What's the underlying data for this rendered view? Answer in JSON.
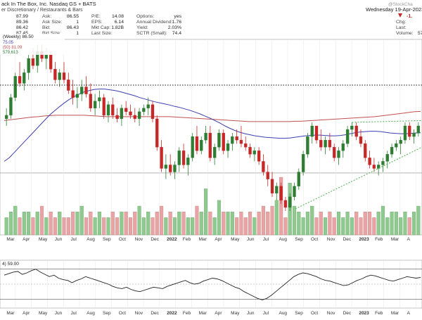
{
  "header": {
    "title": "ack In The Box, Inc.  Nasdaq GS + BATS",
    "subtitle": "er Discretionary / Restaurants & Bars",
    "quote_col1": [
      "87.99",
      "89.36",
      "86.42",
      "87.45"
    ],
    "quote_col2": [
      {
        "label": "Ask:",
        "value": "86.55"
      },
      {
        "label": "Ask Size:",
        "value": "1"
      },
      {
        "label": "Bid:",
        "value": "86.43"
      },
      {
        "label": "Bid Size:",
        "value": "1"
      }
    ],
    "quote_col3": [
      {
        "label": "P/E:",
        "value": "14.08"
      },
      {
        "label": "EPS:",
        "value": "6.14"
      },
      {
        "label": "Mkt Cap:",
        "value": "1.82B"
      },
      {
        "label": "Last Size:",
        "value": ""
      }
    ],
    "quote_col4": [
      {
        "label": "Options:",
        "value": "yes"
      },
      {
        "label": "Annual Dividend:",
        "value": "1.76"
      },
      {
        "label": "Yield:",
        "value": "2.03%"
      },
      {
        "label": "SCTR (Small):",
        "value": "74.4"
      }
    ],
    "date": "Wednesday  19-Apr-2023  2:",
    "brand": "@StockCha",
    "right_labels": [
      "Chg:",
      "Last:",
      "Volume:"
    ],
    "chg_value": "-1.",
    "volume_value": "579"
  },
  "legend": {
    "price_line": "(Weekly) 86.50",
    "ma_fast_value": "75.05",
    "ma_slow_line": "(50) 81.09",
    "vol_line": "579,613",
    "rsi_line": "4) 59.00"
  },
  "colors": {
    "up": "#2e7d32",
    "down": "#c62828",
    "vol_up": "#8fc98f",
    "vol_down": "#e8a4a4",
    "ma_fast": "#3d3fb0",
    "ma_slow": "#c05050",
    "trend": "#4caf50",
    "rsi": "#222222"
  },
  "chart_data": {
    "type": "candlestick",
    "price_range": [
      53,
      101
    ],
    "months": [
      "Mar",
      "Apr",
      "May",
      "Jun",
      "Jul",
      "Aug",
      "Sep",
      "Oct",
      "Nov",
      "Dec",
      "2022",
      "Feb",
      "Mar",
      "Apr",
      "May",
      "Jun",
      "Jul",
      "Aug",
      "Sep",
      "Oct",
      "Nov",
      "Dec",
      "2023",
      "Feb",
      "Mar",
      "A"
    ],
    "candles": [
      {
        "o": 79,
        "h": 82,
        "l": 77,
        "c": 80
      },
      {
        "o": 80,
        "h": 86,
        "l": 79,
        "c": 85
      },
      {
        "o": 85,
        "h": 92,
        "l": 84,
        "c": 91
      },
      {
        "o": 91,
        "h": 95,
        "l": 88,
        "c": 89
      },
      {
        "o": 89,
        "h": 93,
        "l": 87,
        "c": 92
      },
      {
        "o": 92,
        "h": 97,
        "l": 90,
        "c": 96
      },
      {
        "o": 96,
        "h": 99,
        "l": 93,
        "c": 94
      },
      {
        "o": 94,
        "h": 100,
        "l": 92,
        "c": 98
      },
      {
        "o": 98,
        "h": 100,
        "l": 95,
        "c": 96
      },
      {
        "o": 96,
        "h": 99,
        "l": 93,
        "c": 97
      },
      {
        "o": 97,
        "h": 98,
        "l": 92,
        "c": 93
      },
      {
        "o": 93,
        "h": 95,
        "l": 89,
        "c": 90
      },
      {
        "o": 90,
        "h": 93,
        "l": 88,
        "c": 92
      },
      {
        "o": 92,
        "h": 95,
        "l": 89,
        "c": 90
      },
      {
        "o": 90,
        "h": 92,
        "l": 86,
        "c": 87
      },
      {
        "o": 87,
        "h": 90,
        "l": 83,
        "c": 85
      },
      {
        "o": 85,
        "h": 88,
        "l": 82,
        "c": 86
      },
      {
        "o": 86,
        "h": 90,
        "l": 84,
        "c": 88
      },
      {
        "o": 88,
        "h": 91,
        "l": 85,
        "c": 86
      },
      {
        "o": 86,
        "h": 89,
        "l": 81,
        "c": 82
      },
      {
        "o": 82,
        "h": 86,
        "l": 80,
        "c": 84
      },
      {
        "o": 84,
        "h": 87,
        "l": 82,
        "c": 85
      },
      {
        "o": 85,
        "h": 86,
        "l": 79,
        "c": 80
      },
      {
        "o": 80,
        "h": 84,
        "l": 78,
        "c": 83
      },
      {
        "o": 83,
        "h": 85,
        "l": 79,
        "c": 80
      },
      {
        "o": 80,
        "h": 82,
        "l": 78,
        "c": 79
      },
      {
        "o": 79,
        "h": 83,
        "l": 77,
        "c": 82
      },
      {
        "o": 82,
        "h": 84,
        "l": 80,
        "c": 81
      },
      {
        "o": 81,
        "h": 83,
        "l": 79,
        "c": 80
      },
      {
        "o": 80,
        "h": 82,
        "l": 78,
        "c": 79
      },
      {
        "o": 79,
        "h": 82,
        "l": 77,
        "c": 81
      },
      {
        "o": 81,
        "h": 83,
        "l": 80,
        "c": 82
      },
      {
        "o": 82,
        "h": 85,
        "l": 80,
        "c": 83
      },
      {
        "o": 83,
        "h": 84,
        "l": 78,
        "c": 79
      },
      {
        "o": 79,
        "h": 80,
        "l": 70,
        "c": 71
      },
      {
        "o": 71,
        "h": 73,
        "l": 64,
        "c": 65
      },
      {
        "o": 65,
        "h": 69,
        "l": 62,
        "c": 66
      },
      {
        "o": 66,
        "h": 69,
        "l": 63,
        "c": 64
      },
      {
        "o": 64,
        "h": 67,
        "l": 62,
        "c": 66
      },
      {
        "o": 66,
        "h": 71,
        "l": 64,
        "c": 70
      },
      {
        "o": 70,
        "h": 72,
        "l": 65,
        "c": 66
      },
      {
        "o": 66,
        "h": 69,
        "l": 63,
        "c": 68
      },
      {
        "o": 68,
        "h": 75,
        "l": 67,
        "c": 74
      },
      {
        "o": 74,
        "h": 77,
        "l": 69,
        "c": 70
      },
      {
        "o": 70,
        "h": 74,
        "l": 69,
        "c": 73
      },
      {
        "o": 73,
        "h": 77,
        "l": 72,
        "c": 75
      },
      {
        "o": 75,
        "h": 77,
        "l": 67,
        "c": 68
      },
      {
        "o": 68,
        "h": 72,
        "l": 66,
        "c": 71
      },
      {
        "o": 71,
        "h": 76,
        "l": 70,
        "c": 75
      },
      {
        "o": 75,
        "h": 76,
        "l": 69,
        "c": 70
      },
      {
        "o": 70,
        "h": 73,
        "l": 68,
        "c": 72
      },
      {
        "o": 72,
        "h": 75,
        "l": 70,
        "c": 74
      },
      {
        "o": 74,
        "h": 76,
        "l": 72,
        "c": 73
      },
      {
        "o": 73,
        "h": 77,
        "l": 71,
        "c": 72
      },
      {
        "o": 72,
        "h": 74,
        "l": 70,
        "c": 71
      },
      {
        "o": 71,
        "h": 72,
        "l": 68,
        "c": 69
      },
      {
        "o": 69,
        "h": 71,
        "l": 67,
        "c": 70
      },
      {
        "o": 70,
        "h": 71,
        "l": 66,
        "c": 67
      },
      {
        "o": 67,
        "h": 69,
        "l": 63,
        "c": 64
      },
      {
        "o": 64,
        "h": 66,
        "l": 60,
        "c": 62
      },
      {
        "o": 62,
        "h": 64,
        "l": 57,
        "c": 58
      },
      {
        "o": 58,
        "h": 61,
        "l": 56,
        "c": 60
      },
      {
        "o": 60,
        "h": 61,
        "l": 55,
        "c": 56
      },
      {
        "o": 56,
        "h": 57,
        "l": 53,
        "c": 54
      },
      {
        "o": 54,
        "h": 58,
        "l": 53,
        "c": 57
      },
      {
        "o": 57,
        "h": 61,
        "l": 56,
        "c": 60
      },
      {
        "o": 60,
        "h": 65,
        "l": 59,
        "c": 64
      },
      {
        "o": 64,
        "h": 70,
        "l": 63,
        "c": 69
      },
      {
        "o": 69,
        "h": 75,
        "l": 68,
        "c": 74
      },
      {
        "o": 74,
        "h": 78,
        "l": 72,
        "c": 77
      },
      {
        "o": 77,
        "h": 77,
        "l": 72,
        "c": 73
      },
      {
        "o": 73,
        "h": 76,
        "l": 70,
        "c": 71
      },
      {
        "o": 71,
        "h": 74,
        "l": 69,
        "c": 73
      },
      {
        "o": 73,
        "h": 75,
        "l": 70,
        "c": 71
      },
      {
        "o": 71,
        "h": 72,
        "l": 67,
        "c": 68
      },
      {
        "o": 68,
        "h": 71,
        "l": 66,
        "c": 70
      },
      {
        "o": 70,
        "h": 73,
        "l": 68,
        "c": 72
      },
      {
        "o": 72,
        "h": 77,
        "l": 71,
        "c": 76
      },
      {
        "o": 76,
        "h": 78,
        "l": 74,
        "c": 77
      },
      {
        "o": 77,
        "h": 78,
        "l": 73,
        "c": 74
      },
      {
        "o": 74,
        "h": 76,
        "l": 71,
        "c": 72
      },
      {
        "o": 72,
        "h": 73,
        "l": 67,
        "c": 68
      },
      {
        "o": 68,
        "h": 70,
        "l": 65,
        "c": 66
      },
      {
        "o": 66,
        "h": 68,
        "l": 64,
        "c": 65
      },
      {
        "o": 65,
        "h": 67,
        "l": 63,
        "c": 66
      },
      {
        "o": 66,
        "h": 68,
        "l": 64,
        "c": 67
      },
      {
        "o": 67,
        "h": 70,
        "l": 65,
        "c": 69
      },
      {
        "o": 69,
        "h": 72,
        "l": 68,
        "c": 71
      },
      {
        "o": 71,
        "h": 73,
        "l": 70,
        "c": 72
      },
      {
        "o": 72,
        "h": 74,
        "l": 69,
        "c": 73
      },
      {
        "o": 73,
        "h": 78,
        "l": 72,
        "c": 77
      },
      {
        "o": 77,
        "h": 78,
        "l": 73,
        "c": 74
      },
      {
        "o": 74,
        "h": 76,
        "l": 72,
        "c": 75
      },
      {
        "o": 75,
        "h": 78,
        "l": 74,
        "c": 77
      }
    ],
    "ma_fast": [
      67,
      68,
      69.5,
      71,
      72.5,
      74,
      75.5,
      77,
      78.5,
      80,
      81.2,
      82.4,
      83.5,
      84.5,
      85.3,
      86,
      86.6,
      87,
      87.3,
      87.4,
      87.4,
      87.2,
      87,
      86.7,
      86.3,
      85.9,
      85.5,
      85,
      84.6,
      84.2,
      83.8,
      83.5,
      83.2,
      82.9,
      82.5,
      82.2,
      81.8,
      81.4,
      80.9,
      80.4,
      79.8,
      79.2,
      78.5,
      77.8,
      77,
      76.3,
      75.7,
      75.2,
      74.8,
      74.5,
      74.2,
      74,
      73.8,
      73.7,
      73.6,
      73.5,
      73.5,
      73.6,
      73.8,
      74,
      74.2,
      74.3,
      74.4,
      74.4,
      74.3,
      74.2,
      74.2,
      74.3,
      74.5,
      74.8,
      75.1,
      75.3,
      75.4,
      75.5,
      75.5,
      75.4,
      75.2,
      75,
      74.9,
      74.8,
      74.8,
      74.9,
      75,
      75.05
    ],
    "ma_slow": [
      78.5,
      78.7,
      78.9,
      79.1,
      79.3,
      79.5,
      79.6,
      79.8,
      79.9,
      80,
      80,
      80,
      80,
      80,
      80,
      79.9,
      79.8,
      79.7,
      79.6,
      79.6,
      79.6,
      79.6,
      79.6,
      79.6,
      79.6,
      79.6,
      79.6,
      79.6,
      79.6,
      79.6,
      79.5,
      79.4,
      79.3,
      79.2,
      79.1,
      79,
      78.9,
      78.8,
      78.7,
      78.6,
      78.5,
      78.4,
      78.3,
      78.2,
      78.2,
      78.2,
      78.2,
      78.2,
      78.2,
      78.2,
      78.2,
      78.3,
      78.3,
      78.4,
      78.5,
      78.6,
      78.7,
      78.8,
      78.9,
      79,
      79.1,
      79.2,
      79.3,
      79.4,
      79.5,
      79.6,
      79.8,
      80,
      80.2,
      80.4,
      80.6,
      80.8,
      81,
      81.09
    ],
    "resistance_level": 88.5,
    "trendline_rising": {
      "from": {
        "i": 70,
        "price": 54
      },
      "to": {
        "i": 94,
        "price": 71
      }
    },
    "trendline_upper": {
      "from": {
        "i": 78,
        "price": 78
      },
      "to": {
        "i": 94,
        "price": 78.5
      }
    },
    "volume": [
      3,
      4,
      5,
      3,
      4,
      4,
      3,
      4,
      5,
      3,
      4,
      3,
      4,
      3,
      3,
      4,
      4,
      5,
      3,
      4,
      3,
      4,
      3,
      3,
      4,
      3,
      4,
      4,
      3,
      4,
      5,
      3,
      4,
      3,
      4,
      5,
      3,
      4,
      3,
      4,
      4,
      3,
      3,
      5,
      4,
      3,
      4,
      3,
      6,
      4,
      4,
      4,
      3,
      4,
      3,
      4,
      3,
      4,
      5,
      4,
      5,
      6,
      4,
      3,
      6,
      5,
      4,
      3,
      4,
      5,
      3,
      4,
      3,
      4,
      3,
      4,
      3,
      4,
      3,
      4,
      3,
      4,
      4,
      3,
      4,
      5,
      3,
      4,
      4,
      3,
      4,
      3,
      4,
      5
    ],
    "volume_spikes": {
      "45": 8,
      "62": 10,
      "64": 9
    },
    "rsi": [
      62,
      64,
      66,
      67,
      63,
      65,
      68,
      70,
      66,
      63,
      60,
      62,
      58,
      56,
      55,
      52,
      55,
      57,
      60,
      58,
      56,
      54,
      52,
      50,
      47,
      45,
      44,
      46,
      43,
      41,
      40,
      42,
      44,
      46,
      45,
      44,
      47,
      49,
      51,
      53,
      55,
      52,
      50,
      51,
      54,
      56,
      58,
      57,
      55,
      52,
      49,
      46,
      44,
      40,
      37,
      34,
      31,
      29,
      31,
      35,
      40,
      45,
      50,
      55,
      60,
      63,
      65,
      64,
      62,
      60,
      57,
      55,
      54,
      52,
      50,
      48,
      49,
      52,
      55,
      57,
      60,
      62,
      61,
      59,
      57,
      55,
      54,
      56,
      58,
      60,
      59,
      58,
      59
    ],
    "rsi_levels": [
      70,
      50,
      30
    ]
  }
}
